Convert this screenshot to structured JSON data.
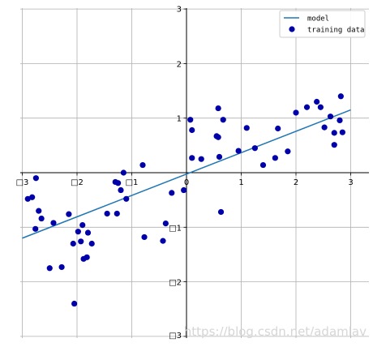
{
  "chart_data": {
    "type": "scatter",
    "xlim": [
      -3,
      3
    ],
    "ylim": [
      -3,
      3
    ],
    "grid": true,
    "axes_style": "spines centered at origin",
    "x_ticks": [
      -3,
      -2,
      -1,
      0,
      1,
      2,
      3
    ],
    "y_ticks": [
      -3,
      -2,
      -1,
      0,
      1,
      2,
      3
    ],
    "x_tick_labels": [
      "□3",
      "□2",
      "□1",
      "0",
      "1",
      "2",
      "3"
    ],
    "y_tick_labels": [
      "□3",
      "□2",
      "□1",
      "0",
      "1",
      "2",
      "3"
    ],
    "legend": {
      "placement": "top-right",
      "entries": [
        {
          "label": "model",
          "kind": "line",
          "color": "#1f77b4"
        },
        {
          "label": "training data",
          "kind": "marker",
          "color": "#0000aa"
        }
      ]
    },
    "series": [
      {
        "name": "model",
        "kind": "line",
        "color": "#1f77b4",
        "x": [
          -3,
          3
        ],
        "y": [
          -1.2,
          1.15
        ]
      },
      {
        "name": "training data",
        "kind": "scatter",
        "color": "#0000aa",
        "points": [
          [
            -2.9,
            -0.48
          ],
          [
            -2.82,
            -0.45
          ],
          [
            -2.75,
            -0.1
          ],
          [
            -2.76,
            -1.03
          ],
          [
            -2.7,
            -0.7
          ],
          [
            -2.65,
            -0.84
          ],
          [
            -2.5,
            -1.75
          ],
          [
            -2.43,
            -0.92
          ],
          [
            -2.28,
            -1.73
          ],
          [
            -2.15,
            -0.76
          ],
          [
            -2.07,
            -1.3
          ],
          [
            -2.05,
            -2.4
          ],
          [
            -1.98,
            -1.08
          ],
          [
            -1.93,
            -1.26
          ],
          [
            -1.9,
            -0.96
          ],
          [
            -1.88,
            -1.58
          ],
          [
            -1.82,
            -1.55
          ],
          [
            -1.8,
            -1.1
          ],
          [
            -1.73,
            -1.3
          ],
          [
            -1.45,
            -0.75
          ],
          [
            -1.3,
            -0.17
          ],
          [
            -1.25,
            -0.19
          ],
          [
            -1.27,
            -0.75
          ],
          [
            -1.2,
            -0.32
          ],
          [
            -1.15,
            0.0
          ],
          [
            -1.1,
            -0.48
          ],
          [
            -0.8,
            0.14
          ],
          [
            -0.77,
            -1.18
          ],
          [
            -0.43,
            -1.25
          ],
          [
            -0.38,
            -0.93
          ],
          [
            -0.27,
            -0.37
          ],
          [
            -0.05,
            -0.32
          ],
          [
            0.07,
            0.97
          ],
          [
            0.1,
            0.78
          ],
          [
            0.1,
            0.27
          ],
          [
            0.27,
            0.25
          ],
          [
            0.55,
            0.67
          ],
          [
            0.58,
            1.18
          ],
          [
            0.58,
            0.65
          ],
          [
            0.6,
            0.29
          ],
          [
            0.63,
            -0.72
          ],
          [
            0.67,
            0.97
          ],
          [
            0.95,
            0.4
          ],
          [
            1.1,
            0.82
          ],
          [
            1.25,
            0.45
          ],
          [
            1.4,
            0.14
          ],
          [
            1.62,
            0.27
          ],
          [
            1.67,
            0.81
          ],
          [
            1.85,
            0.39
          ],
          [
            2.0,
            1.1
          ],
          [
            2.2,
            1.2
          ],
          [
            2.38,
            1.3
          ],
          [
            2.45,
            1.2
          ],
          [
            2.52,
            0.83
          ],
          [
            2.63,
            1.03
          ],
          [
            2.7,
            0.73
          ],
          [
            2.7,
            0.51
          ],
          [
            2.8,
            0.96
          ],
          [
            2.82,
            1.4
          ],
          [
            2.85,
            0.74
          ]
        ]
      }
    ]
  },
  "watermark": "https://blog.csdn.net/adamlav"
}
